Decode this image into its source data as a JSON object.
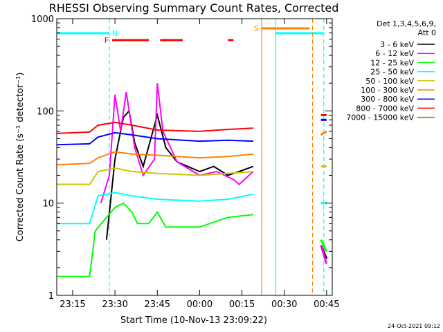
{
  "chart_data": {
    "type": "line",
    "title": "RHESSI Observing Summary Count Rates, Corrected",
    "xlabel": "Start Time (10-Nov-13 23:09:22)",
    "ylabel": "Corrected Count Rate (s⁻¹ detector⁻¹)",
    "yscale": "log",
    "ylim": [
      1,
      1000
    ],
    "xlim": [
      "23:09:22",
      "00:47:00"
    ],
    "x_ticks": [
      "23:15",
      "23:30",
      "23:45",
      "00:00",
      "00:15",
      "00:30",
      "00:45"
    ],
    "y_ticks": [
      "1",
      "10",
      "100",
      "1000"
    ],
    "legend_header": [
      "Det 1,3,4,5,6,9,",
      "Att 0"
    ],
    "legend_position": "right",
    "timestamp": "24-Oct-2021 09:12",
    "flags": [
      {
        "label": "F",
        "color": "#ff0000",
        "segments": [
          [
            "23:29",
            "23:42"
          ],
          [
            "23:46",
            "23:54"
          ],
          [
            "00:10",
            "00:12"
          ]
        ]
      },
      {
        "label": "N",
        "color": "#00ffff",
        "segments": [
          [
            "23:09:22",
            "23:28"
          ],
          [
            "00:27",
            "00:44"
          ]
        ]
      },
      {
        "label": "S",
        "color": "#ff8000",
        "segments": [
          [
            "00:22",
            "00:39"
          ]
        ]
      }
    ],
    "vertical_lines": [
      {
        "t": "23:28",
        "color": "#00ffff",
        "style": "dashed"
      },
      {
        "t": "00:22",
        "color": "#ff8000",
        "style": "solid"
      },
      {
        "t": "00:27",
        "color": "#00ffff",
        "style": "solid"
      },
      {
        "t": "00:40",
        "color": "#ff8000",
        "style": "dashed"
      },
      {
        "t": "00:44",
        "color": "#00ffff",
        "style": "dashed"
      }
    ],
    "series": [
      {
        "name": "3 - 6 keV",
        "color": "#000000",
        "x": [
          "23:27",
          "23:30",
          "23:33",
          "23:35",
          "23:37",
          "23:40",
          "23:45",
          "23:48",
          "23:52",
          "00:00",
          "00:05",
          "00:10",
          "00:14",
          "00:19",
          "00:43",
          "00:45"
        ],
        "y": [
          4,
          30,
          85,
          100,
          45,
          25,
          90,
          40,
          28,
          22,
          25,
          20,
          22,
          25,
          3.5,
          2.5
        ]
      },
      {
        "name": "6 - 12 keV",
        "color": "#ff00ff",
        "x": [
          "23:25",
          "23:28",
          "23:30",
          "23:32",
          "23:34",
          "23:37",
          "23:40",
          "23:44",
          "23:45",
          "23:47",
          "23:52",
          "00:00",
          "00:06",
          "00:12",
          "00:14",
          "00:19",
          "00:43",
          "00:45"
        ],
        "y": [
          10,
          20,
          150,
          60,
          160,
          40,
          20,
          30,
          200,
          60,
          28,
          20,
          22,
          18,
          16,
          22,
          3.5,
          2.2
        ]
      },
      {
        "name": "12 - 25 keV",
        "color": "#00ff00",
        "x": [
          "23:09:22",
          "23:21",
          "23:23",
          "23:27",
          "23:30",
          "23:33",
          "23:36",
          "23:38",
          "23:42",
          "23:45",
          "23:48",
          "00:00",
          "00:10",
          "00:19",
          "00:43",
          "00:45"
        ],
        "y": [
          1.6,
          1.6,
          5,
          7,
          9,
          10,
          8,
          6,
          6,
          8,
          5.5,
          5.5,
          7,
          7.5,
          4,
          3
        ]
      },
      {
        "name": "25 - 50 keV",
        "color": "#00ffff",
        "x": [
          "23:09:22",
          "23:21",
          "23:24",
          "23:30",
          "23:36",
          "23:45",
          "00:00",
          "00:10",
          "00:19",
          "00:43",
          "00:45"
        ],
        "y": [
          6,
          6,
          12,
          13,
          12,
          11,
          10.5,
          11,
          12.5,
          10,
          10
        ]
      },
      {
        "name": "50 - 100 keV",
        "color": "#c8c800",
        "x": [
          "23:09:22",
          "23:21",
          "23:24",
          "23:30",
          "23:36",
          "23:45",
          "00:00",
          "00:10",
          "00:19",
          "00:43",
          "00:45"
        ],
        "y": [
          16,
          16,
          22,
          24,
          22,
          21,
          20,
          21,
          22,
          25,
          25
        ]
      },
      {
        "name": "100 - 300 keV",
        "color": "#ff8000",
        "x": [
          "23:09:22",
          "23:21",
          "23:24",
          "23:30",
          "23:36",
          "23:45",
          "00:00",
          "00:10",
          "00:19",
          "00:43",
          "00:45"
        ],
        "y": [
          26,
          27,
          31,
          36,
          34,
          33,
          31,
          32,
          34,
          55,
          60
        ]
      },
      {
        "name": "300 - 800 keV",
        "color": "#0000ff",
        "x": [
          "23:09:22",
          "23:21",
          "23:24",
          "23:30",
          "23:36",
          "23:45",
          "00:00",
          "00:10",
          "00:19",
          "00:43",
          "00:45"
        ],
        "y": [
          43,
          44,
          52,
          58,
          55,
          50,
          47,
          48,
          47,
          80,
          80
        ]
      },
      {
        "name": "800 - 7000 keV",
        "color": "#ff0000",
        "x": [
          "23:09:22",
          "23:21",
          "23:24",
          "23:30",
          "23:36",
          "23:45",
          "00:00",
          "00:10",
          "00:19",
          "00:43",
          "00:45"
        ],
        "y": [
          57,
          59,
          70,
          75,
          70,
          62,
          60,
          63,
          65,
          90,
          90
        ]
      },
      {
        "name": "7000 - 15000 keV",
        "color": "#808000",
        "x": [],
        "y": []
      }
    ]
  }
}
